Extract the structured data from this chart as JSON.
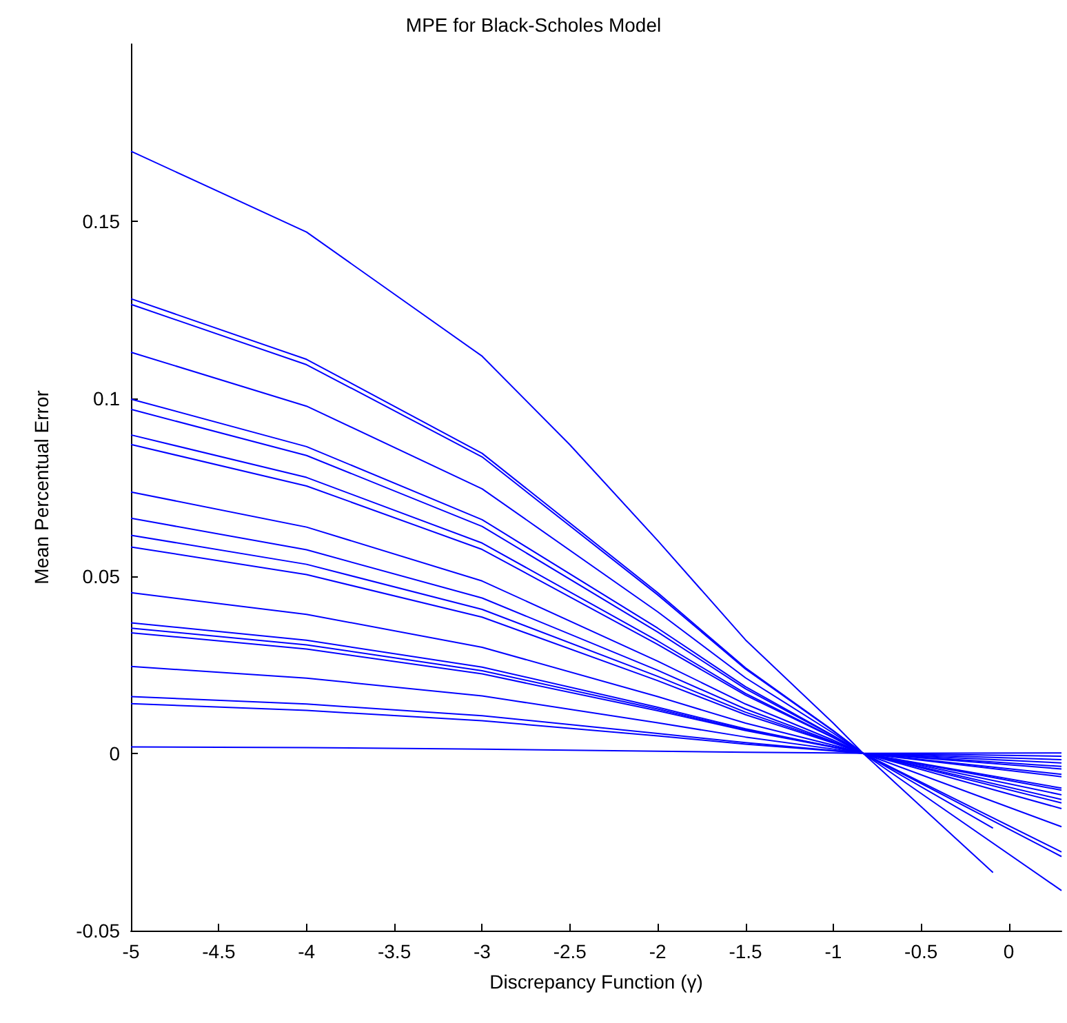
{
  "chart_data": {
    "type": "line",
    "title": "MPE for Black-Scholes Model",
    "xlabel": "Discrepancy Function (γ)",
    "ylabel": "Mean Percentual Error",
    "xlim": [
      -5,
      0.3
    ],
    "xticks": [
      -5,
      -4.5,
      -4,
      -3.5,
      -3,
      -2.5,
      -2,
      -1.5,
      -1,
      -0.5,
      0
    ],
    "ylim": [
      -0.05,
      0.2
    ],
    "yticks": [
      -0.05,
      0,
      0.05,
      0.1,
      0.15
    ],
    "grid": false,
    "marker": "none",
    "line_style": "solid",
    "series": [
      {
        "color": "#0000ff",
        "x": [
          -5,
          -4,
          -3,
          -2.5,
          -2,
          -1.5,
          -1,
          -0.83,
          -0.5,
          -0.09
        ],
        "values": [
          0.1698,
          0.147,
          0.112,
          0.087,
          0.06,
          0.032,
          0.0085,
          0,
          -0.015,
          -0.0336
        ]
      },
      {
        "color": "#0000ff",
        "x": [
          -5,
          -4,
          -3,
          -2,
          -1.5,
          -1,
          -0.83,
          0.3
        ],
        "values": [
          0.1282,
          0.1111,
          0.0846,
          0.0453,
          0.0241,
          0.0064,
          0,
          -0.0387
        ]
      },
      {
        "color": "#0000ff",
        "x": [
          -5,
          -4,
          -3,
          -2,
          -1.5,
          -1,
          -0.83,
          -0.09
        ],
        "values": [
          0.1266,
          0.1096,
          0.0836,
          0.0447,
          0.0238,
          0.0063,
          0,
          -0.0211
        ]
      },
      {
        "color": "#0000ff",
        "x": [
          -5,
          -4,
          -3,
          -2,
          -1.5,
          -1,
          -0.83,
          0.3
        ],
        "values": [
          0.1131,
          0.0979,
          0.0746,
          0.0399,
          0.0213,
          0.0057,
          0,
          -0.0291
        ]
      },
      {
        "color": "#0000ff",
        "x": [
          -5,
          -4,
          -3,
          -2,
          -1.5,
          -1,
          -0.83,
          0.3
        ],
        "values": [
          0.0999,
          0.0865,
          0.0659,
          0.0353,
          0.0188,
          0.005,
          0,
          -0.0278
        ]
      },
      {
        "color": "#0000ff",
        "x": [
          -5,
          -4,
          -3,
          -2,
          -1.5,
          -1,
          -0.83,
          0.3
        ],
        "values": [
          0.097,
          0.084,
          0.064,
          0.0342,
          0.0182,
          0.0049,
          0,
          -0.0207
        ]
      },
      {
        "color": "#0000ff",
        "x": [
          -5,
          -4,
          -3,
          -2,
          -1.5,
          -1,
          -0.83,
          0.3
        ],
        "values": [
          0.0898,
          0.0778,
          0.0593,
          0.0317,
          0.0169,
          0.0045,
          0,
          -0.0156
        ]
      },
      {
        "color": "#0000ff",
        "x": [
          -5,
          -4,
          -3,
          -2,
          -1.5,
          -1,
          -0.83,
          0.3
        ],
        "values": [
          0.0871,
          0.0754,
          0.0575,
          0.0307,
          0.0164,
          0.0044,
          0,
          -0.014
        ]
      },
      {
        "color": "#0000ff",
        "x": [
          -5,
          -4,
          -3,
          -2,
          -1.5,
          -1,
          -0.83,
          0.3
        ],
        "values": [
          0.0737,
          0.0638,
          0.0486,
          0.026,
          0.0139,
          0.0037,
          0,
          -0.013
        ]
      },
      {
        "color": "#0000ff",
        "x": [
          -5,
          -4,
          -3,
          -2,
          -1.5,
          -1,
          -0.83,
          0.3
        ],
        "values": [
          0.0663,
          0.0574,
          0.0438,
          0.0234,
          0.0125,
          0.0033,
          0,
          -0.0117
        ]
      },
      {
        "color": "#0000ff",
        "x": [
          -5,
          -4,
          -3,
          -2,
          -1.5,
          -1,
          -0.83,
          0.3
        ],
        "values": [
          0.0615,
          0.0533,
          0.0406,
          0.0217,
          0.0116,
          0.0031,
          0,
          -0.0104
        ]
      },
      {
        "color": "#0000ff",
        "x": [
          -5,
          -4,
          -3,
          -2,
          -1.5,
          -1,
          -0.83,
          0.3
        ],
        "values": [
          0.0582,
          0.0504,
          0.0384,
          0.0205,
          0.0109,
          0.0029,
          0,
          -0.0098
        ]
      },
      {
        "color": "#0000ff",
        "x": [
          -5,
          -4,
          -3,
          -2,
          -1.5,
          -1,
          -0.83,
          0.3
        ],
        "values": [
          0.0453,
          0.0392,
          0.0299,
          0.016,
          0.0085,
          0.0023,
          0,
          -0.0066
        ]
      },
      {
        "color": "#0000ff",
        "x": [
          -5,
          -4,
          -3,
          -2,
          -1.5,
          -1,
          -0.83,
          0.3
        ],
        "values": [
          0.0368,
          0.0319,
          0.0243,
          0.013,
          0.0069,
          0.0018,
          0,
          -0.0059
        ]
      },
      {
        "color": "#0000ff",
        "x": [
          -5,
          -4,
          -3,
          -2,
          -1.5,
          -1,
          -0.83,
          0.3
        ],
        "values": [
          0.0353,
          0.0306,
          0.0233,
          0.0125,
          0.0066,
          0.0018,
          0,
          -0.0044
        ]
      },
      {
        "color": "#0000ff",
        "x": [
          -5,
          -4,
          -3,
          -2,
          -1.5,
          -1,
          -0.83,
          0.3
        ],
        "values": [
          0.034,
          0.0294,
          0.0224,
          0.012,
          0.0064,
          0.0017,
          0,
          -0.0037
        ]
      },
      {
        "color": "#0000ff",
        "x": [
          -5,
          -4,
          -3,
          -2,
          -1.5,
          -1,
          -0.83,
          0.3
        ],
        "values": [
          0.0245,
          0.0212,
          0.0162,
          0.0086,
          0.0046,
          0.0012,
          0,
          -0.0027
        ]
      },
      {
        "color": "#0000ff",
        "x": [
          -5,
          -4,
          -3,
          -2,
          -1.5,
          -1,
          -0.83,
          0.3
        ],
        "values": [
          0.016,
          0.0139,
          0.0106,
          0.0056,
          0.003,
          0.0008,
          0,
          -0.0018
        ]
      },
      {
        "color": "#0000ff",
        "x": [
          -5,
          -4,
          -3,
          -2,
          -1.5,
          -1,
          -0.83,
          0.3
        ],
        "values": [
          0.014,
          0.0121,
          0.0092,
          0.0049,
          0.0026,
          0.0007,
          0,
          -0.0008
        ]
      },
      {
        "color": "#0000ff",
        "x": [
          -5,
          -4,
          -3,
          -2,
          -1.5,
          -1,
          -0.83,
          0.3
        ],
        "values": [
          0.0018,
          0.0016,
          0.0012,
          0.0006,
          0.0003,
          0.0001,
          0,
          0.0001
        ]
      }
    ]
  }
}
